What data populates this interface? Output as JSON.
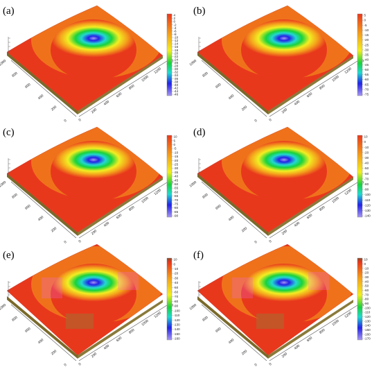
{
  "chart_data": [
    {
      "type": "surface",
      "panel_label": "(a)",
      "x_ticks": [
        "0",
        "200",
        "400",
        "600",
        "800",
        "1000",
        "1200",
        "1400"
      ],
      "y_ticks": [
        "0",
        "200",
        "400",
        "600",
        "800",
        "1000"
      ],
      "z_axis_label": "",
      "colorbar_ticks": [
        "4",
        "2",
        "0",
        "-2",
        "-4",
        "-6",
        "-8",
        "-10",
        "-12",
        "-14",
        "-16",
        "-18",
        "-20",
        "-22",
        "-24",
        "-26",
        "-28",
        "-30",
        "-32",
        "-34",
        "-36",
        "-38",
        "-40",
        "-42",
        "-44",
        "-46"
      ],
      "colorbar_range": [
        -46,
        4
      ],
      "depression_center": [
        700,
        550
      ],
      "surface_style": "smooth"
    },
    {
      "type": "surface",
      "panel_label": "(b)",
      "x_ticks": [
        "0",
        "200",
        "400",
        "600",
        "800",
        "1000",
        "1200",
        "1400"
      ],
      "y_ticks": [
        "0",
        "200",
        "400",
        "600",
        "800",
        "1000"
      ],
      "z_axis_label": "",
      "colorbar_ticks": [
        "5",
        "0",
        "-5",
        "-10",
        "-15",
        "-20",
        "-25",
        "-30",
        "-35",
        "-40",
        "-45",
        "-50",
        "-55",
        "-60",
        "-65",
        "-70",
        "-75"
      ],
      "colorbar_range": [
        -75,
        5
      ],
      "depression_center": [
        700,
        550
      ],
      "surface_style": "smooth"
    },
    {
      "type": "surface",
      "panel_label": "(c)",
      "x_ticks": [
        "0",
        "200",
        "400",
        "600",
        "800",
        "1000",
        "1200",
        "1400"
      ],
      "y_ticks": [
        "0",
        "200",
        "400",
        "600",
        "800",
        "1000"
      ],
      "z_axis_label": "",
      "colorbar_ticks": [
        "10",
        "5",
        "0",
        "-5",
        "-10",
        "-15",
        "-20",
        "-25",
        "-30",
        "-35",
        "-40",
        "-45",
        "-50",
        "-55",
        "-60",
        "-65",
        "-70",
        "-75",
        "-80",
        "-85",
        "-90"
      ],
      "colorbar_range": [
        -90,
        10
      ],
      "depression_center": [
        700,
        550
      ],
      "surface_style": "smooth"
    },
    {
      "type": "surface",
      "panel_label": "(d)",
      "x_ticks": [
        "0",
        "200",
        "400",
        "600",
        "800",
        "1000",
        "1200",
        "1400"
      ],
      "y_ticks": [
        "0",
        "200",
        "400",
        "600",
        "800",
        "1000"
      ],
      "z_axis_label": "",
      "colorbar_ticks": [
        "10",
        "0",
        "-10",
        "-20",
        "-30",
        "-40",
        "-50",
        "-60",
        "-70",
        "-80",
        "-90",
        "-100",
        "-110",
        "-120",
        "-130",
        "-140"
      ],
      "colorbar_range": [
        -140,
        10
      ],
      "depression_center": [
        700,
        550
      ],
      "surface_style": "smooth"
    },
    {
      "type": "surface",
      "panel_label": "(e)",
      "x_ticks": [
        "0",
        "200",
        "400",
        "600",
        "800",
        "1000",
        "1200",
        "1400"
      ],
      "y_ticks": [
        "0",
        "200",
        "400",
        "600",
        "800",
        "1000"
      ],
      "z_axis_label": "",
      "colorbar_ticks": [
        "10",
        "0",
        "-10",
        "-20",
        "-30",
        "-40",
        "-50",
        "-60",
        "-70",
        "-80",
        "-90",
        "-100",
        "-110",
        "-120",
        "-130",
        "-140",
        "-150",
        "-160"
      ],
      "colorbar_range": [
        -160,
        10
      ],
      "depression_center": [
        700,
        550
      ],
      "surface_style": "blocky"
    },
    {
      "type": "surface",
      "panel_label": "(f)",
      "x_ticks": [
        "0",
        "200",
        "400",
        "600",
        "800",
        "1000",
        "1200",
        "1400"
      ],
      "y_ticks": [
        "0",
        "200",
        "400",
        "600",
        "800",
        "1000"
      ],
      "z_axis_label": "",
      "colorbar_ticks": [
        "10",
        "0",
        "-10",
        "-20",
        "-30",
        "-40",
        "-50",
        "-60",
        "-70",
        "-80",
        "-90",
        "-100",
        "-110",
        "-120",
        "-130",
        "-140",
        "-150",
        "-160",
        "-170"
      ],
      "colorbar_range": [
        -170,
        10
      ],
      "depression_center": [
        700,
        550
      ],
      "surface_style": "blocky"
    }
  ],
  "colors": {
    "high": "#e8381c",
    "mid_orange": "#f4a21c",
    "yellow": "#f2ee22",
    "green": "#18d23c",
    "cyan": "#22d8d0",
    "blue": "#2222e6",
    "low": "#a898f0",
    "edge": "#7a6a2a",
    "axis": "#555555"
  }
}
